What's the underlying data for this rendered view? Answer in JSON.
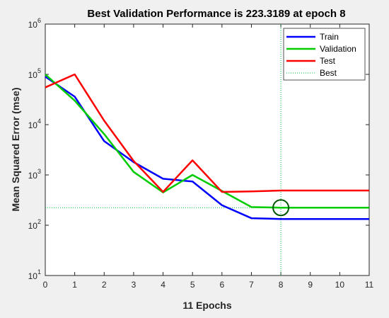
{
  "chart_data": {
    "type": "line",
    "title": "Best Validation Performance is 223.3189 at epoch 8",
    "xlabel": "11 Epochs",
    "ylabel": "Mean Squared Error  (mse)",
    "xlim": [
      0,
      11
    ],
    "ylim": [
      10,
      1000000
    ],
    "yscale": "log",
    "x_ticks": [
      "0",
      "1",
      "2",
      "3",
      "4",
      "5",
      "6",
      "7",
      "8",
      "9",
      "10",
      "11"
    ],
    "y_ticks": [
      {
        "base": "10",
        "exp": "1",
        "value": 10
      },
      {
        "base": "10",
        "exp": "2",
        "value": 100
      },
      {
        "base": "10",
        "exp": "3",
        "value": 1000
      },
      {
        "base": "10",
        "exp": "4",
        "value": 10000
      },
      {
        "base": "10",
        "exp": "5",
        "value": 100000
      },
      {
        "base": "10",
        "exp": "6",
        "value": 1000000
      }
    ],
    "x": [
      0,
      1,
      2,
      3,
      4,
      5,
      6,
      7,
      8,
      9,
      10,
      11
    ],
    "series": [
      {
        "name": "Train",
        "color": "#0000ff",
        "values": [
          90000,
          36000,
          4700,
          1800,
          840,
          740,
          250,
          138,
          133,
          133,
          133,
          133
        ]
      },
      {
        "name": "Validation",
        "color": "#00cc00",
        "values": [
          100000,
          30000,
          6500,
          1150,
          450,
          1000,
          480,
          230,
          223,
          223,
          223,
          223
        ]
      },
      {
        "name": "Test",
        "color": "#ff0000",
        "values": [
          55000,
          100000,
          12000,
          1900,
          460,
          1950,
          460,
          470,
          490,
          490,
          490,
          490
        ]
      }
    ],
    "best": {
      "name": "Best",
      "color": "#00bb44",
      "epoch": 8,
      "value": 223.3189
    },
    "legend_position": "top-right",
    "grid": false
  }
}
